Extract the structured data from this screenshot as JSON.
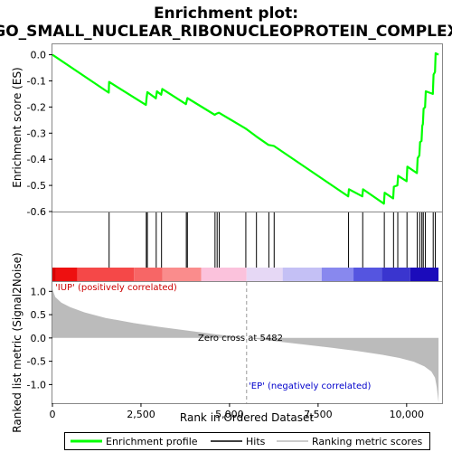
{
  "chart_data": {
    "type": "line",
    "title_line1": "Enrichment plot:",
    "title_line2": "GO_SMALL_NUCLEAR_RIBONUCLEOPROTEIN_COMPLEX",
    "xlabel": "Rank in Ordered Dataset",
    "xlim": [
      0,
      11000
    ],
    "xticks": [
      {
        "v": 0,
        "label": "0"
      },
      {
        "v": 2500,
        "label": "2,500"
      },
      {
        "v": 5000,
        "label": "5,000"
      },
      {
        "v": 7500,
        "label": "7,500"
      },
      {
        "v": 10000,
        "label": "10,000"
      }
    ],
    "es_panel": {
      "ylabel": "Enrichment score (ES)",
      "ylim": [
        -0.6,
        0.04
      ],
      "yticks": [
        {
          "v": 0.0,
          "label": "0.0"
        },
        {
          "v": -0.1,
          "label": "-0.1"
        },
        {
          "v": -0.2,
          "label": "-0.2"
        },
        {
          "v": -0.3,
          "label": "-0.3"
        },
        {
          "v": -0.4,
          "label": "-0.4"
        },
        {
          "v": -0.5,
          "label": "-0.5"
        },
        {
          "v": -0.6,
          "label": "-0.6"
        }
      ],
      "series": {
        "name": "Enrichment profile",
        "color": "#00ff00",
        "points": [
          [
            0,
            0.0
          ],
          [
            1590,
            -0.145
          ],
          [
            1600,
            -0.104
          ],
          [
            2640,
            -0.192
          ],
          [
            2660,
            -0.164
          ],
          [
            2680,
            -0.143
          ],
          [
            2920,
            -0.167
          ],
          [
            2950,
            -0.14
          ],
          [
            3070,
            -0.153
          ],
          [
            3100,
            -0.131
          ],
          [
            3770,
            -0.189
          ],
          [
            3790,
            -0.177
          ],
          [
            3810,
            -0.166
          ],
          [
            4580,
            -0.23
          ],
          [
            4640,
            -0.225
          ],
          [
            4700,
            -0.222
          ],
          [
            5450,
            -0.282
          ],
          [
            5480,
            -0.285
          ],
          [
            5750,
            -0.312
          ],
          [
            6100,
            -0.345
          ],
          [
            6250,
            -0.349
          ],
          [
            8350,
            -0.542
          ],
          [
            8370,
            -0.515
          ],
          [
            8750,
            -0.542
          ],
          [
            8770,
            -0.515
          ],
          [
            9360,
            -0.57
          ],
          [
            9380,
            -0.528
          ],
          [
            9620,
            -0.55
          ],
          [
            9640,
            -0.505
          ],
          [
            9740,
            -0.5
          ],
          [
            9760,
            -0.463
          ],
          [
            10000,
            -0.484
          ],
          [
            10020,
            -0.428
          ],
          [
            10290,
            -0.453
          ],
          [
            10310,
            -0.396
          ],
          [
            10360,
            -0.385
          ],
          [
            10380,
            -0.334
          ],
          [
            10420,
            -0.33
          ],
          [
            10440,
            -0.272
          ],
          [
            10460,
            -0.265
          ],
          [
            10480,
            -0.206
          ],
          [
            10520,
            -0.201
          ],
          [
            10540,
            -0.14
          ],
          [
            10740,
            -0.15
          ],
          [
            10760,
            -0.076
          ],
          [
            10800,
            -0.066
          ],
          [
            10820,
            0.006
          ],
          [
            10900,
            0.0
          ]
        ]
      }
    },
    "hits": {
      "name": "Hits",
      "positions": [
        1600,
        2650,
        2680,
        2930,
        3080,
        3780,
        3810,
        4590,
        4650,
        4710,
        5460,
        5760,
        6110,
        6260,
        8360,
        8760,
        9370,
        9630,
        9750,
        10010,
        10300,
        10370,
        10430,
        10470,
        10530,
        10750,
        10810
      ]
    },
    "colorbar": {
      "segments": [
        {
          "from": 0,
          "to": 100,
          "color": "#d90000"
        },
        {
          "from": 100,
          "to": 700,
          "color": "#ee1010"
        },
        {
          "from": 700,
          "to": 2300,
          "color": "#f54848"
        },
        {
          "from": 2300,
          "to": 3100,
          "color": "#f76666"
        },
        {
          "from": 3100,
          "to": 4200,
          "color": "#fa8c8c"
        },
        {
          "from": 4200,
          "to": 5482,
          "color": "#fbc2dc"
        },
        {
          "from": 5482,
          "to": 6500,
          "color": "#e6d8f5"
        },
        {
          "from": 6500,
          "to": 7600,
          "color": "#c4c0f5"
        },
        {
          "from": 7600,
          "to": 8500,
          "color": "#8888ee"
        },
        {
          "from": 8500,
          "to": 9300,
          "color": "#5555e0"
        },
        {
          "from": 9300,
          "to": 10100,
          "color": "#3a35cf"
        },
        {
          "from": 10100,
          "to": 10900,
          "color": "#1b0bbb"
        }
      ]
    },
    "ranked_panel": {
      "ylabel": "Ranked list metric (Signal2Noise)",
      "ylim": [
        -1.4,
        1.2
      ],
      "yticks": [
        {
          "v": 1.0,
          "label": "1.0"
        },
        {
          "v": 0.5,
          "label": "0.5"
        },
        {
          "v": 0.0,
          "label": "0.0"
        },
        {
          "v": -0.5,
          "label": "-0.5"
        },
        {
          "v": -1.0,
          "label": "-1.0"
        }
      ],
      "series": {
        "name": "Ranking metric scores",
        "color": "#bbbbbb",
        "points": [
          [
            0,
            1.05
          ],
          [
            80,
            0.88
          ],
          [
            250,
            0.76
          ],
          [
            500,
            0.66
          ],
          [
            900,
            0.55
          ],
          [
            1500,
            0.43
          ],
          [
            2300,
            0.32
          ],
          [
            3000,
            0.24
          ],
          [
            3800,
            0.16
          ],
          [
            4600,
            0.08
          ],
          [
            5482,
            0.0
          ],
          [
            6300,
            -0.07
          ],
          [
            7100,
            -0.14
          ],
          [
            7900,
            -0.21
          ],
          [
            8600,
            -0.28
          ],
          [
            9300,
            -0.36
          ],
          [
            9800,
            -0.43
          ],
          [
            10200,
            -0.51
          ],
          [
            10500,
            -0.61
          ],
          [
            10700,
            -0.72
          ],
          [
            10800,
            -0.85
          ],
          [
            10850,
            -1.05
          ],
          [
            10900,
            -1.38
          ]
        ]
      },
      "zero_cross_text": "Zero cross at 5482",
      "zero_cross_rank": 5482,
      "label_pos": "'IUP' (positively correlated)",
      "label_neg": "'EP' (negatively correlated)"
    },
    "legend": [
      {
        "label": "Enrichment profile",
        "color": "#00ff00",
        "kind": "line"
      },
      {
        "label": "Hits",
        "color": "#000000",
        "kind": "line"
      },
      {
        "label": "Ranking metric scores",
        "color": "#bbbbbb",
        "kind": "line"
      }
    ]
  }
}
